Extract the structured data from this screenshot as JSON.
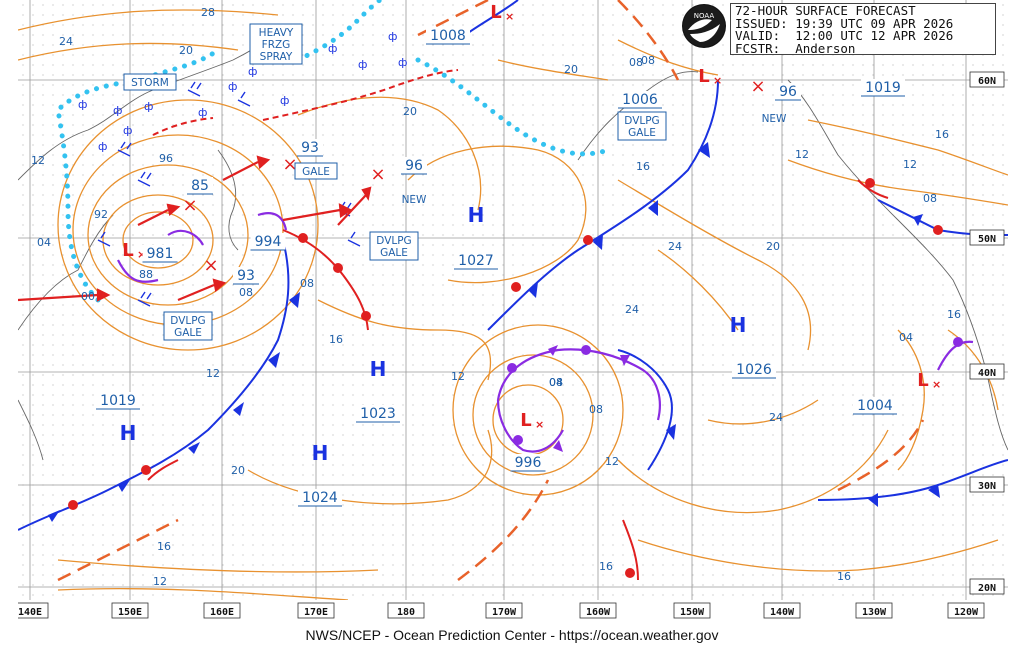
{
  "header": {
    "title": "72-HOUR SURFACE FORECAST",
    "issued": "ISSUED: 19:39 UTC 09 APR 2026",
    "valid": "VALID:  12:00 UTC 12 APR 2026",
    "forecaster": "FCSTR:  Anderson"
  },
  "logo": "NOAA",
  "footer": "NWS/NCEP - Ocean Prediction Center - https://ocean.weather.gov",
  "colors": {
    "isobar": "#e8912f",
    "front_warm": "#e02020",
    "front_cold": "#1a32e0",
    "occluded": "#8a2be2",
    "ice": "#33c2f0",
    "text_blue": "#1f5fa8",
    "low": "#e02020",
    "high": "#1a32e0"
  },
  "lat_labels": [
    "60N",
    "50N",
    "40N",
    "30N",
    "20N"
  ],
  "lon_labels": [
    "140E",
    "150E",
    "160E",
    "170E",
    "180",
    "170W",
    "160W",
    "150W",
    "140W",
    "130W",
    "120W"
  ],
  "pressure_centers": [
    {
      "type": "H",
      "value": "1019"
    },
    {
      "type": "H",
      "value": "1024"
    },
    {
      "type": "H",
      "value": "1023"
    },
    {
      "type": "H",
      "value": "1027"
    },
    {
      "type": "H",
      "value": "1026"
    },
    {
      "type": "H",
      "value": "1019"
    },
    {
      "type": "L",
      "value": "981"
    },
    {
      "type": "L",
      "value": "996"
    },
    {
      "type": "L",
      "value": "1004"
    },
    {
      "type": "L",
      "value": "1006"
    },
    {
      "type": "L",
      "value": "1008"
    }
  ],
  "lows_minor": [
    "994",
    "93",
    "85",
    "93",
    "96",
    "96"
  ],
  "warnings": [
    "STORM",
    "HEAVY",
    "FRZG",
    "SPRAY",
    "GALE",
    "DVLPG",
    "GALE",
    "DVLPG",
    "GALE",
    "DVLPG",
    "GALE",
    "NEW",
    "NEW"
  ],
  "isobar_labels": [
    "28",
    "24",
    "20",
    "20",
    "12",
    "04",
    "00",
    "88",
    "92",
    "96",
    "08",
    "12",
    "16",
    "16",
    "20",
    "16",
    "12",
    "04",
    "08",
    "08",
    "12",
    "16",
    "24",
    "20",
    "24",
    "12",
    "16",
    "20",
    "24",
    "08",
    "04",
    "16",
    "12",
    "12",
    "16",
    "08",
    "08",
    "04",
    "08"
  ]
}
